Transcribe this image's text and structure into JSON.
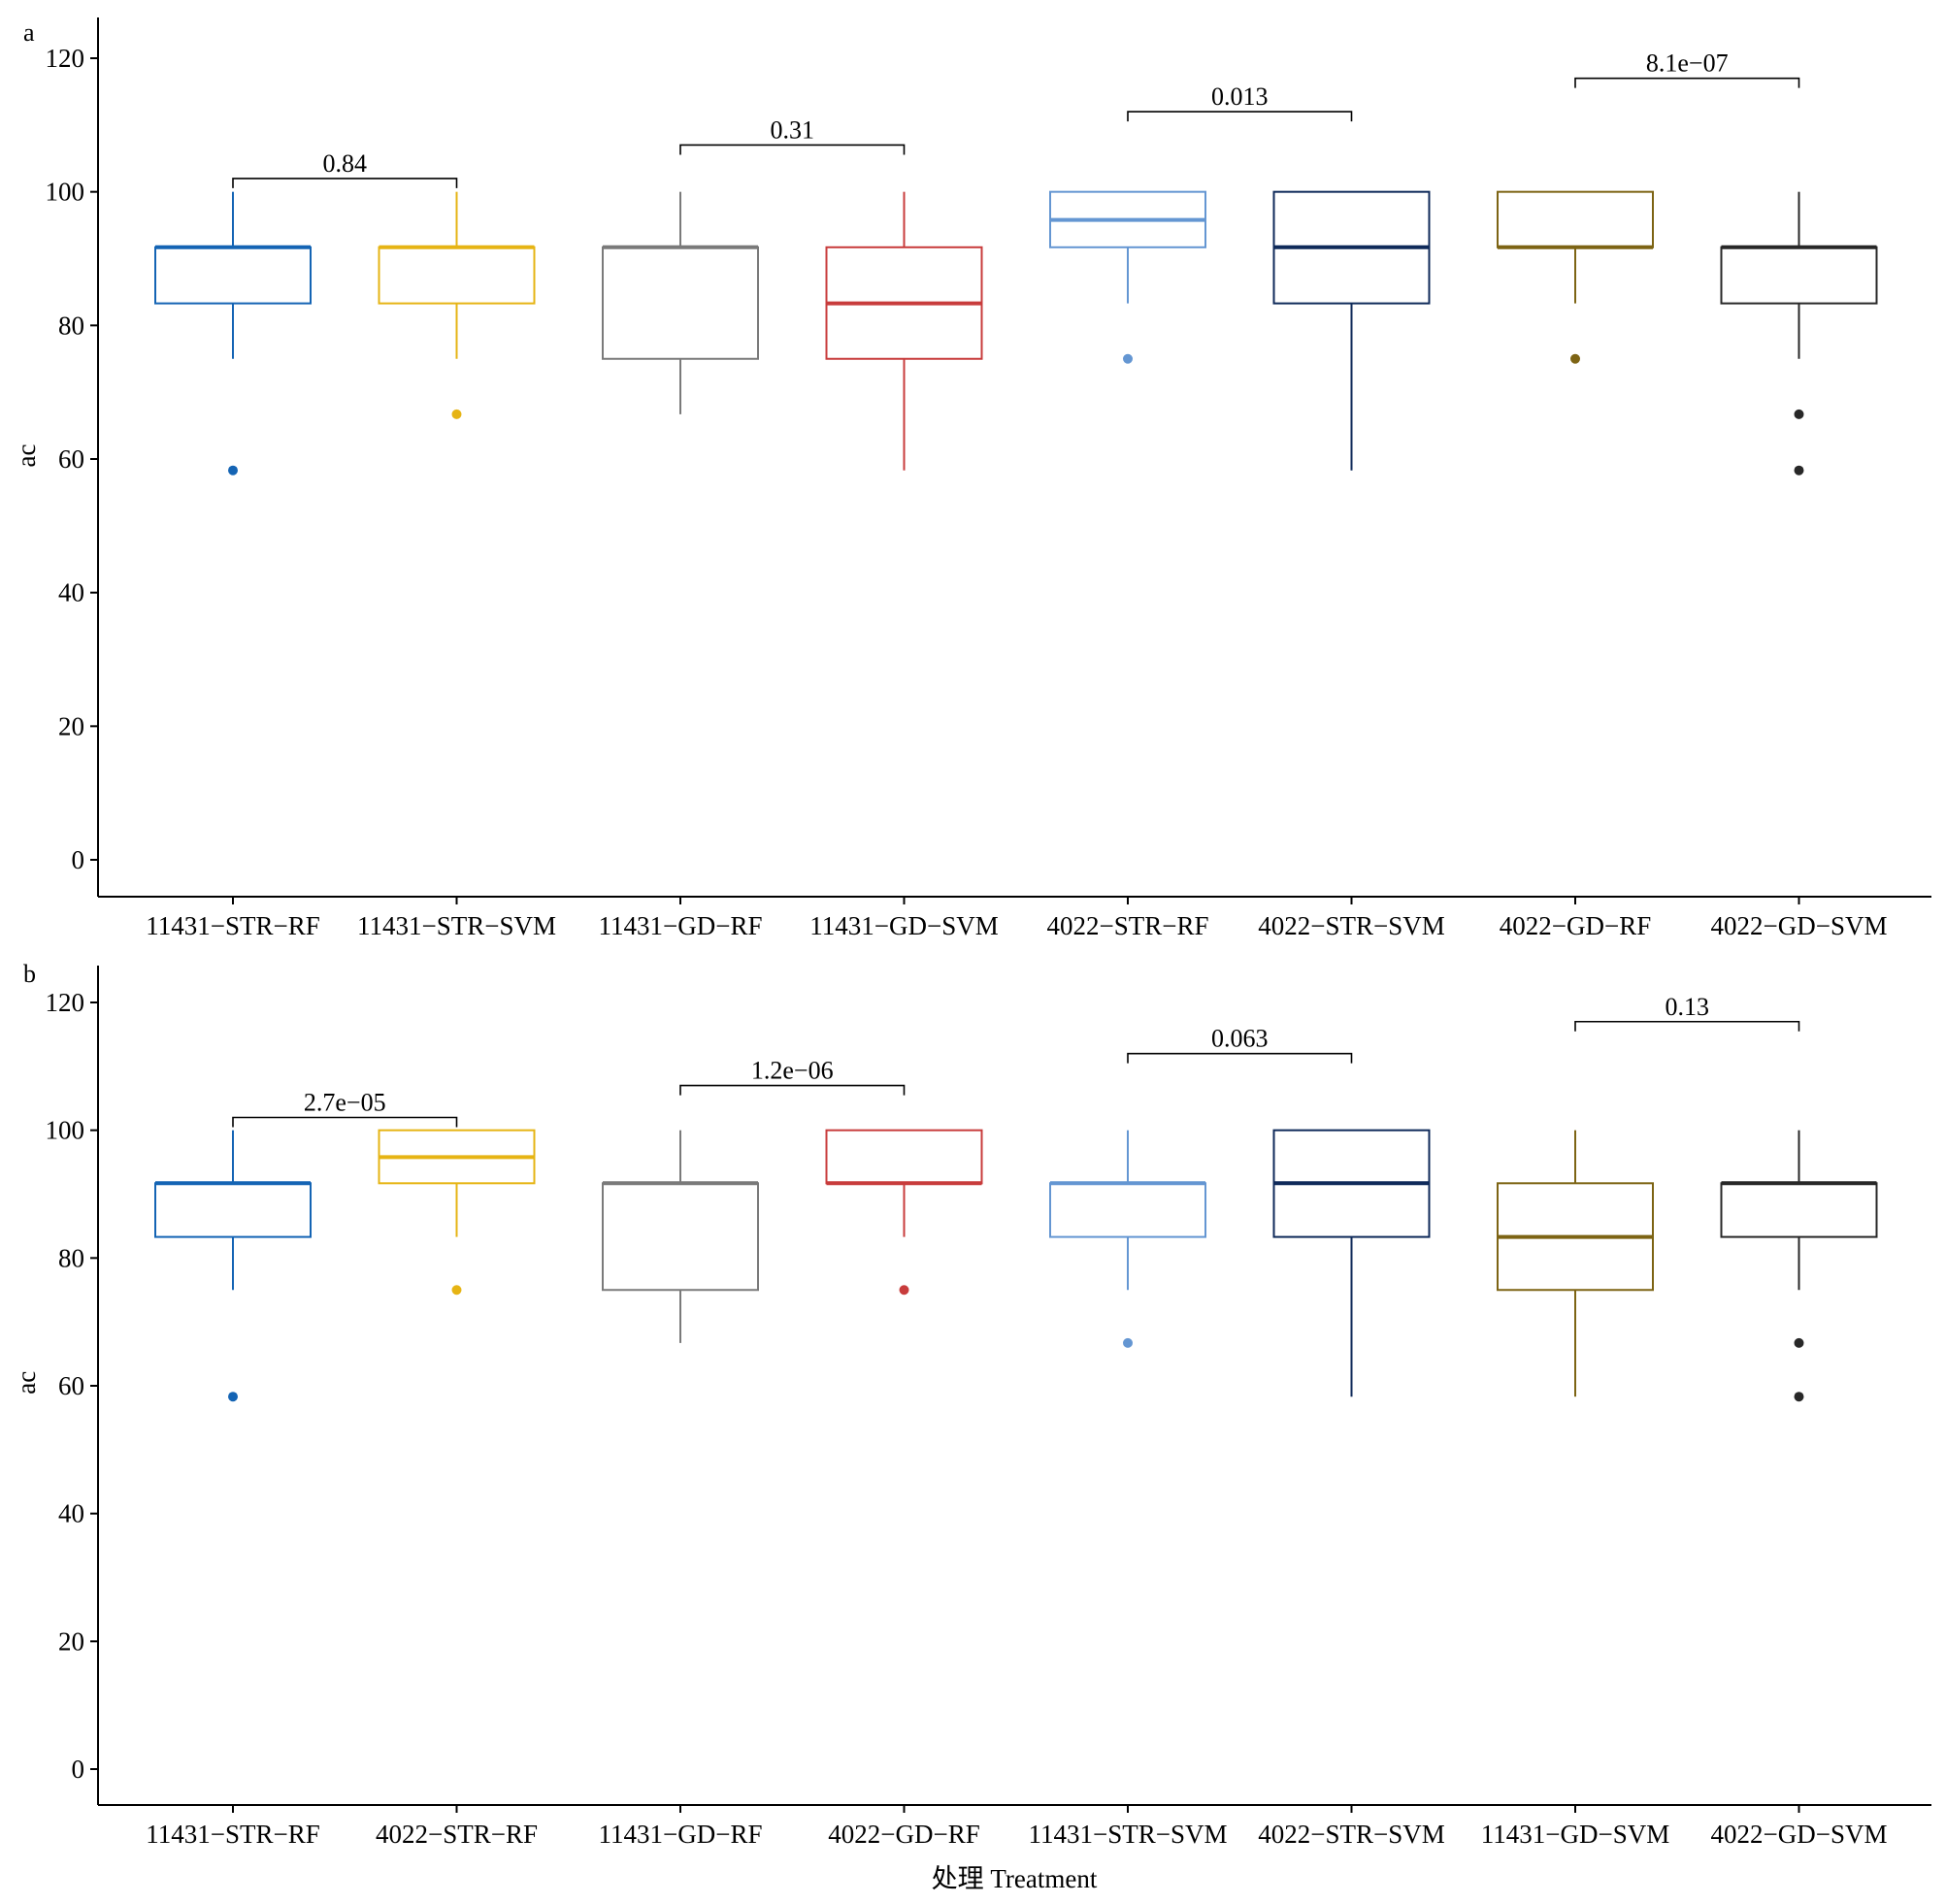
{
  "colors": {
    "axis": "#000000",
    "bracket": "#000000",
    "series": [
      "#1464b4",
      "#e6b414",
      "#7a7a7a",
      "#c83c3c",
      "#6496d2",
      "#0f2a5a",
      "#7d6414",
      "#282828"
    ]
  },
  "xlabel": "处理 Treatment",
  "chart_data": [
    {
      "type": "box",
      "panel_label": "a",
      "ylabel": "ac",
      "ylim": [
        -5,
        126
      ],
      "yticks": [
        0,
        20,
        40,
        60,
        80,
        100,
        120
      ],
      "grid": false,
      "legend": "none",
      "categories": [
        "11431−STR−RF",
        "11431−STR−SVM",
        "11431−GD−RF",
        "11431−GD−SVM",
        "4022−STR−RF",
        "4022−STR−SVM",
        "4022−GD−RF",
        "4022−GD−SVM"
      ],
      "boxes": [
        {
          "lower_whisker": 75,
          "q1": 83.3,
          "median": 91.7,
          "q3": 91.7,
          "upper_whisker": 100,
          "outliers": [
            58.3
          ]
        },
        {
          "lower_whisker": 75,
          "q1": 83.3,
          "median": 91.7,
          "q3": 91.7,
          "upper_whisker": 100,
          "outliers": [
            66.7
          ]
        },
        {
          "lower_whisker": 66.7,
          "q1": 75,
          "median": 91.7,
          "q3": 91.7,
          "upper_whisker": 100,
          "outliers": []
        },
        {
          "lower_whisker": 58.3,
          "q1": 75,
          "median": 83.3,
          "q3": 91.7,
          "upper_whisker": 100,
          "outliers": []
        },
        {
          "lower_whisker": 83.3,
          "q1": 91.7,
          "median": 95.8,
          "q3": 100,
          "upper_whisker": 100,
          "outliers": [
            75
          ]
        },
        {
          "lower_whisker": 58.3,
          "q1": 83.3,
          "median": 91.7,
          "q3": 100,
          "upper_whisker": 100,
          "outliers": []
        },
        {
          "lower_whisker": 83.3,
          "q1": 91.7,
          "median": 91.7,
          "q3": 100,
          "upper_whisker": 100,
          "outliers": [
            75
          ]
        },
        {
          "lower_whisker": 75,
          "q1": 83.3,
          "median": 91.7,
          "q3": 91.7,
          "upper_whisker": 100,
          "outliers": [
            66.7,
            58.3
          ]
        }
      ],
      "comparisons": [
        {
          "from": 0,
          "to": 1,
          "y": 102,
          "label": "0.84"
        },
        {
          "from": 2,
          "to": 3,
          "y": 107,
          "label": "0.31"
        },
        {
          "from": 4,
          "to": 5,
          "y": 112,
          "label": "0.013"
        },
        {
          "from": 6,
          "to": 7,
          "y": 117,
          "label": "8.1e−07"
        }
      ]
    },
    {
      "type": "box",
      "panel_label": "b",
      "ylabel": "ac",
      "ylim": [
        -5,
        126
      ],
      "yticks": [
        0,
        20,
        40,
        60,
        80,
        100,
        120
      ],
      "grid": false,
      "legend": "none",
      "categories": [
        "11431−STR−RF",
        "4022−STR−RF",
        "11431−GD−RF",
        "4022−GD−RF",
        "11431−STR−SVM",
        "4022−STR−SVM",
        "11431−GD−SVM",
        "4022−GD−SVM"
      ],
      "boxes": [
        {
          "lower_whisker": 75,
          "q1": 83.3,
          "median": 91.7,
          "q3": 91.7,
          "upper_whisker": 100,
          "outliers": [
            58.3
          ]
        },
        {
          "lower_whisker": 83.3,
          "q1": 91.7,
          "median": 95.8,
          "q3": 100,
          "upper_whisker": 100,
          "outliers": [
            75
          ]
        },
        {
          "lower_whisker": 66.7,
          "q1": 75,
          "median": 91.7,
          "q3": 91.7,
          "upper_whisker": 100,
          "outliers": []
        },
        {
          "lower_whisker": 83.3,
          "q1": 91.7,
          "median": 91.7,
          "q3": 100,
          "upper_whisker": 100,
          "outliers": [
            75
          ]
        },
        {
          "lower_whisker": 75,
          "q1": 83.3,
          "median": 91.7,
          "q3": 91.7,
          "upper_whisker": 100,
          "outliers": [
            66.7
          ]
        },
        {
          "lower_whisker": 58.3,
          "q1": 83.3,
          "median": 91.7,
          "q3": 100,
          "upper_whisker": 100,
          "outliers": []
        },
        {
          "lower_whisker": 58.3,
          "q1": 75,
          "median": 83.3,
          "q3": 91.7,
          "upper_whisker": 100,
          "outliers": []
        },
        {
          "lower_whisker": 75,
          "q1": 83.3,
          "median": 91.7,
          "q3": 91.7,
          "upper_whisker": 100,
          "outliers": [
            66.7,
            58.3
          ]
        }
      ],
      "comparisons": [
        {
          "from": 0,
          "to": 1,
          "y": 102,
          "label": "2.7e−05"
        },
        {
          "from": 2,
          "to": 3,
          "y": 107,
          "label": "1.2e−06"
        },
        {
          "from": 4,
          "to": 5,
          "y": 112,
          "label": "0.063"
        },
        {
          "from": 6,
          "to": 7,
          "y": 117,
          "label": "0.13"
        }
      ]
    }
  ]
}
